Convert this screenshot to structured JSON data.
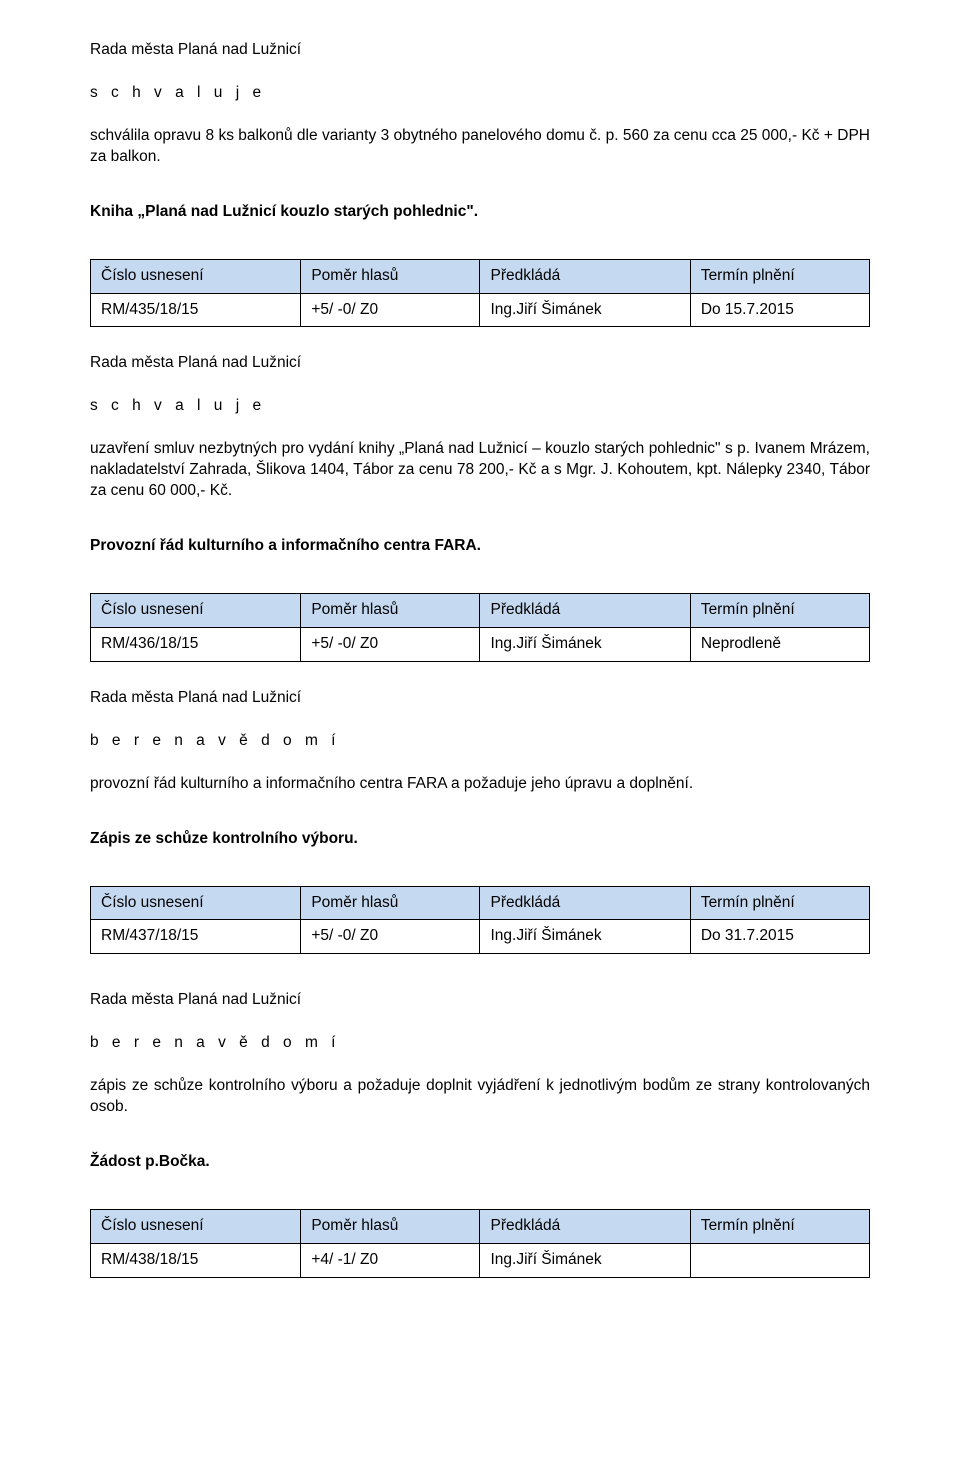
{
  "table_style": {
    "header_bg": "#c5d9f1",
    "border_color": "#000000",
    "font_size_pt": 12,
    "col_widths_pct": [
      27,
      23,
      27,
      23
    ]
  },
  "headers": {
    "c1": "Číslo usnesení",
    "c2": "Poměr hlasů",
    "c3": "Předkládá",
    "c4": "Termín plnění"
  },
  "common": {
    "council_line": "Rada města Planá nad Lužnicí",
    "approves": "s c h v a l u j e",
    "notes": "b e r e   n a   v ě d o m í"
  },
  "sec0": {
    "body": "schválila opravu 8 ks balkonů dle varianty 3 obytného panelového domu č. p. 560 za cenu cca 25 000,- Kč + DPH za balkon."
  },
  "sec1": {
    "title": "Kniha „Planá nad Lužnicí kouzlo starých pohlednic\".",
    "row": {
      "num": "RM/435/18/15",
      "ratio": "+5/ -0/ Z0",
      "who": "Ing.Jiří Šimánek",
      "term": "Do 15.7.2015"
    },
    "body": "uzavření smluv nezbytných pro vydání knihy „Planá nad Lužnicí – kouzlo starých pohlednic\" s p. Ivanem Mrázem, nakladatelství Zahrada, Šlikova 1404, Tábor za cenu 78 200,- Kč a s Mgr. J. Kohoutem, kpt. Nálepky 2340, Tábor za cenu 60 000,- Kč."
  },
  "sec2": {
    "title": "Provozní řád kulturního a informačního centra FARA.",
    "row": {
      "num": "RM/436/18/15",
      "ratio": "+5/ -0/ Z0",
      "who": "Ing.Jiří Šimánek",
      "term": "Neprodleně"
    },
    "body": "provozní řád kulturního a informačního centra FARA a požaduje jeho úpravu a doplnění."
  },
  "sec3": {
    "title": "Zápis ze schůze kontrolního výboru.",
    "row": {
      "num": "RM/437/18/15",
      "ratio": "+5/ -0/ Z0",
      "who": "Ing.Jiří Šimánek",
      "term": "Do 31.7.2015"
    },
    "body": "zápis ze schůze kontrolního výboru a požaduje doplnit vyjádření k jednotlivým bodům ze strany kontrolovaných osob."
  },
  "sec4": {
    "title": "Žádost p.Bočka.",
    "row": {
      "num": "RM/438/18/15",
      "ratio": "+4/ -1/ Z0",
      "who": "Ing.Jiří Šimánek",
      "term": ""
    }
  }
}
